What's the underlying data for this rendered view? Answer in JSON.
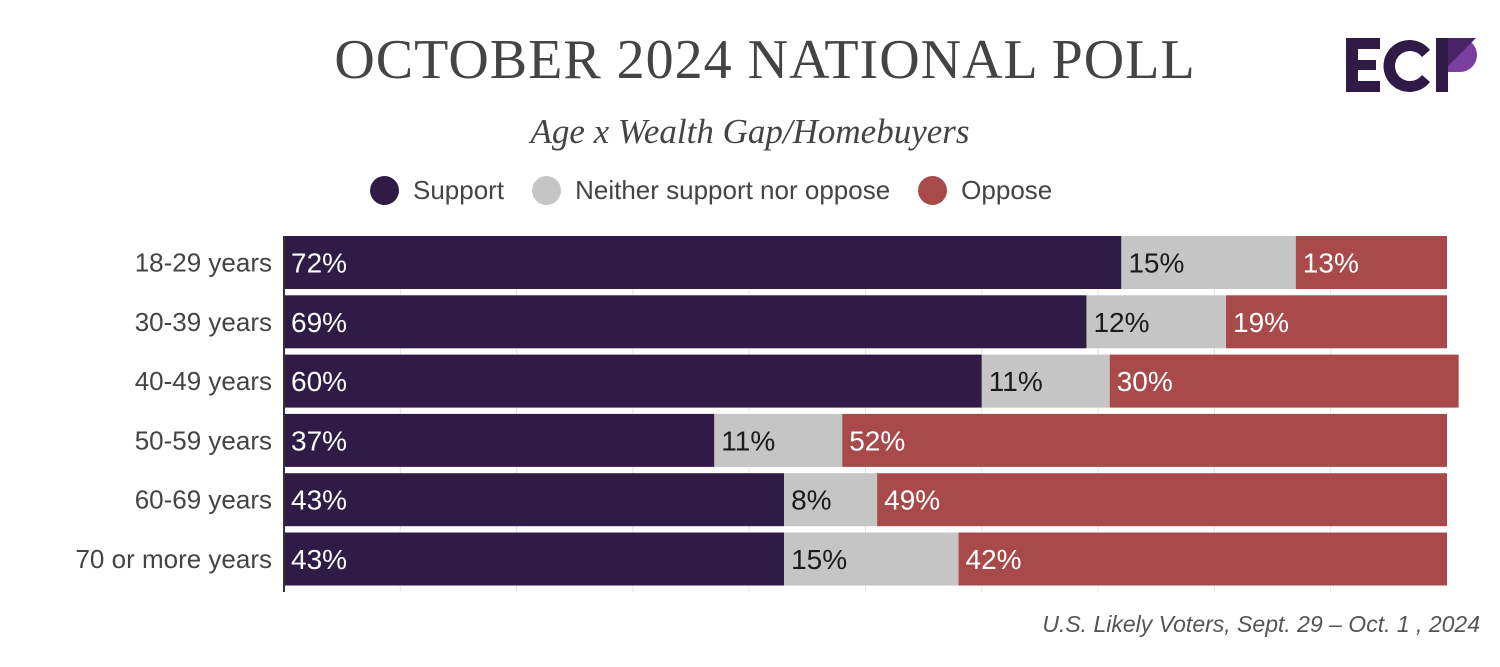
{
  "header": {
    "title": "OCTOBER 2024 NATIONAL POLL",
    "subtitle": "Age x Wealth Gap/Homebuyers",
    "logo_text": "ECP"
  },
  "colors": {
    "support": "#2f1b46",
    "neither": "#c5c5c5",
    "oppose": "#a84a4a",
    "logo_dark": "#2f1b46",
    "logo_accent": "#7b3fa0"
  },
  "legend": {
    "items": [
      {
        "label": "Support",
        "color": "#2f1b46"
      },
      {
        "label": "Neither support nor oppose",
        "color": "#c5c5c5"
      },
      {
        "label": "Oppose",
        "color": "#a84a4a"
      }
    ]
  },
  "footer": {
    "note": "U.S. Likely Voters, Sept. 29 – Oct. 1 , 2024"
  },
  "chart_data": {
    "type": "bar",
    "orientation": "horizontal",
    "stacked": true,
    "categories": [
      "18-29 years",
      "30-39 years",
      "40-49 years",
      "50-59 years",
      "60-69 years",
      "70 or more years"
    ],
    "series": [
      {
        "name": "Support",
        "values": [
          72,
          69,
          60,
          37,
          43,
          43
        ],
        "labels": [
          "72%",
          "69%",
          "60%",
          "37%",
          "43%",
          "43%"
        ]
      },
      {
        "name": "Neither support nor oppose",
        "values": [
          15,
          12,
          11,
          11,
          8,
          15
        ],
        "labels": [
          "15%",
          "12%",
          "11%",
          "11%",
          "8%",
          "15%"
        ]
      },
      {
        "name": "Oppose",
        "values": [
          13,
          19,
          30,
          52,
          49,
          42
        ],
        "labels": [
          "13%",
          "19%",
          "30%",
          "52%",
          "49%",
          "42%"
        ]
      }
    ],
    "xlim": [
      0,
      100
    ],
    "grid": true,
    "legend_position": "top-center"
  }
}
